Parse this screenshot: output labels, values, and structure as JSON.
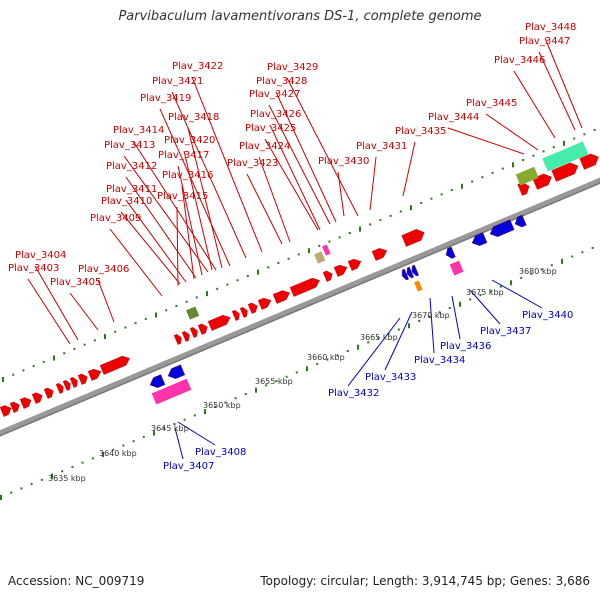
{
  "title": "Parvibaculum lavamentivorans DS-1, complete genome",
  "accession": "Accession: NC_009719",
  "summary": "Topology: circular; Length: 3,914,745 bp; Genes: 3,686",
  "colors": {
    "forward": "#ee0000",
    "reverse": "#0000dd",
    "forward_label": "#cc0000",
    "reverse_label": "#0000cc",
    "backbone": "#888888",
    "tick": "#2a7a1a"
  },
  "kbp_labels": [
    "3635 kbp",
    "3640 kbp",
    "3645 kbp",
    "3650 kbp",
    "3655 kbp",
    "3660 kbp",
    "3665 kbp",
    "3670 kbp",
    "3675 kbp",
    "3680 kbp"
  ],
  "forward_labels": [
    "Plav_3448",
    "Plav_3447",
    "Plav_3446",
    "Plav_3445",
    "Plav_3444",
    "Plav_3435",
    "Plav_3431",
    "Plav_3430",
    "Plav_3429",
    "Plav_3428",
    "Plav_3427",
    "Plav_3426",
    "Plav_3425",
    "Plav_3424",
    "Plav_3423",
    "Plav_3422",
    "Plav_3421",
    "Plav_3419",
    "Plav_3418",
    "Plav_3414",
    "Plav_3420",
    "Plav_3413",
    "Plav_3417",
    "Plav_3412",
    "Plav_3416",
    "Plav_3411",
    "Plav_3410",
    "Plav_3415",
    "Plav_3409",
    "Plav_3404",
    "Plav_3403",
    "Plav_3406",
    "Plav_3405"
  ],
  "reverse_labels": [
    "Plav_3440",
    "Plav_3437",
    "Plav_3436",
    "Plav_3434",
    "Plav_3433",
    "Plav_3432",
    "Plav_3408",
    "Plav_3407"
  ]
}
